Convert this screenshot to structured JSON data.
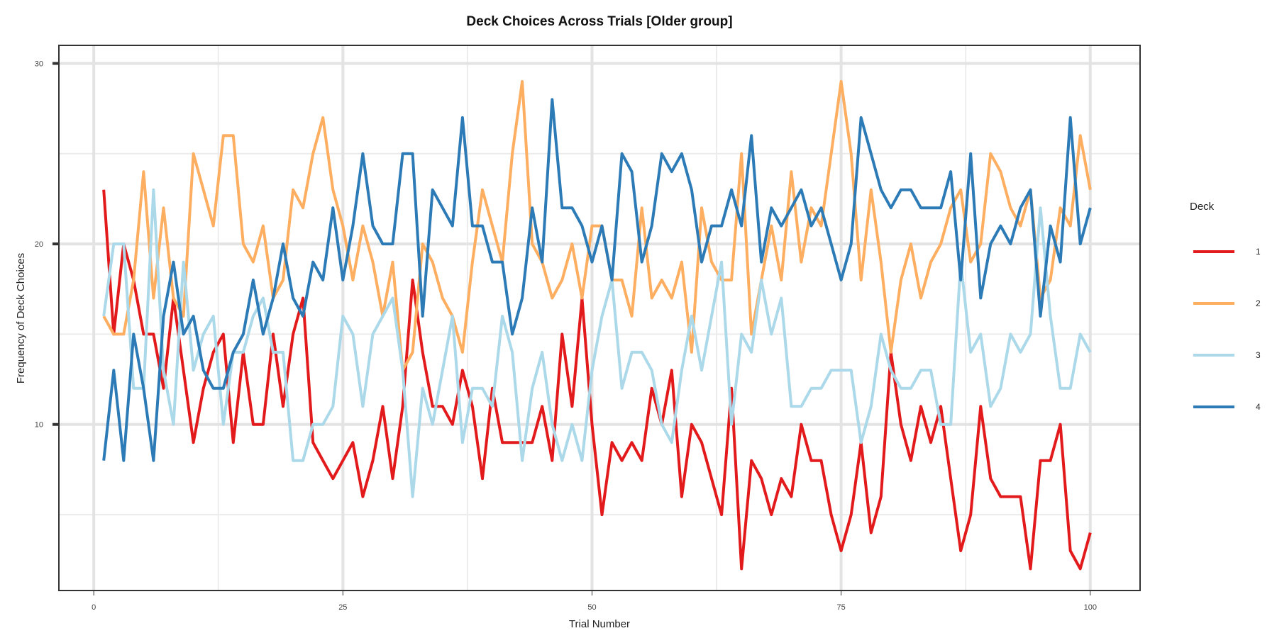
{
  "chart_data": {
    "type": "line",
    "title": "Deck Choices Across Trials [Older group]",
    "xlabel": "Trial Number",
    "ylabel": "Frequency of Deck Choices",
    "xlim": [
      -3.5,
      105
    ],
    "ylim": [
      0.8,
      31
    ],
    "x_ticks": [
      0,
      25,
      50,
      75,
      100
    ],
    "y_ticks": [
      10,
      20,
      30
    ],
    "grid": true,
    "legend": {
      "title": "Deck",
      "position": "right"
    },
    "x": [
      1,
      2,
      3,
      4,
      5,
      6,
      7,
      8,
      9,
      10,
      11,
      12,
      13,
      14,
      15,
      16,
      17,
      18,
      19,
      20,
      21,
      22,
      23,
      24,
      25,
      26,
      27,
      28,
      29,
      30,
      31,
      32,
      33,
      34,
      35,
      36,
      37,
      38,
      39,
      40,
      41,
      42,
      43,
      44,
      45,
      46,
      47,
      48,
      49,
      50,
      51,
      52,
      53,
      54,
      55,
      56,
      57,
      58,
      59,
      60,
      61,
      62,
      63,
      64,
      65,
      66,
      67,
      68,
      69,
      70,
      71,
      72,
      73,
      74,
      75,
      76,
      77,
      78,
      79,
      80,
      81,
      82,
      83,
      84,
      85,
      86,
      87,
      88,
      89,
      90,
      91,
      92,
      93,
      94,
      95,
      96,
      97,
      98,
      99,
      100
    ],
    "series": [
      {
        "name": "1",
        "color": "#E31A1C",
        "values": [
          23,
          15,
          20,
          18,
          15,
          15,
          12,
          17,
          13,
          9,
          12,
          14,
          15,
          9,
          14,
          10,
          10,
          15,
          11,
          15,
          17,
          9,
          8,
          7,
          8,
          9,
          6,
          8,
          11,
          7,
          11,
          18,
          14,
          11,
          11,
          10,
          13,
          11,
          7,
          12,
          9,
          9,
          9,
          9,
          11,
          8,
          15,
          11,
          17,
          10,
          5,
          9,
          8,
          9,
          8,
          12,
          10,
          13,
          6,
          10,
          9,
          7,
          5,
          12,
          2,
          8,
          7,
          5,
          7,
          6,
          10,
          8,
          8,
          5,
          3,
          5,
          9,
          4,
          6,
          14,
          10,
          8,
          11,
          9,
          11,
          7,
          3,
          5,
          11,
          7,
          6,
          6,
          6,
          2,
          8,
          8,
          10,
          3,
          2,
          4
        ]
      },
      {
        "name": "2",
        "color": "#FDAE61",
        "values": [
          16,
          15,
          15,
          18,
          24,
          17,
          22,
          17,
          16,
          25,
          23,
          21,
          26,
          26,
          20,
          19,
          21,
          17,
          18,
          23,
          22,
          25,
          27,
          23,
          21,
          18,
          21,
          19,
          16,
          19,
          13,
          14,
          20,
          19,
          17,
          16,
          14,
          19,
          23,
          21,
          19,
          25,
          29,
          20,
          19,
          17,
          18,
          20,
          17,
          21,
          21,
          18,
          18,
          16,
          22,
          17,
          18,
          17,
          19,
          14,
          22,
          19,
          18,
          18,
          25,
          15,
          18,
          21,
          18,
          24,
          19,
          22,
          21,
          25,
          29,
          25,
          18,
          23,
          19,
          14,
          18,
          20,
          17,
          19,
          20,
          22,
          23,
          19,
          20,
          25,
          24,
          22,
          21,
          23,
          17,
          18,
          22,
          21,
          26,
          23
        ]
      },
      {
        "name": "3",
        "color": "#ABD9E9",
        "values": [
          16,
          20,
          20,
          12,
          12,
          23,
          13,
          10,
          19,
          13,
          15,
          16,
          10,
          14,
          14,
          16,
          17,
          14,
          14,
          8,
          8,
          10,
          10,
          11,
          16,
          15,
          11,
          15,
          16,
          17,
          13,
          6,
          12,
          10,
          13,
          16,
          9,
          12,
          12,
          11,
          16,
          14,
          8,
          12,
          14,
          10,
          8,
          10,
          8,
          13,
          16,
          18,
          12,
          14,
          14,
          13,
          10,
          9,
          13,
          16,
          13,
          16,
          19,
          10,
          15,
          14,
          18,
          15,
          17,
          11,
          11,
          12,
          12,
          13,
          13,
          13,
          9,
          11,
          15,
          13,
          12,
          12,
          13,
          13,
          10,
          10,
          19,
          14,
          15,
          11,
          12,
          15,
          14,
          15,
          22,
          16,
          12,
          12,
          15,
          14
        ]
      },
      {
        "name": "4",
        "color": "#2C7BB6",
        "values": [
          8,
          13,
          8,
          15,
          12,
          8,
          16,
          19,
          15,
          16,
          13,
          12,
          12,
          14,
          15,
          18,
          15,
          17,
          20,
          17,
          16,
          19,
          18,
          22,
          18,
          21,
          25,
          21,
          20,
          20,
          25,
          25,
          16,
          23,
          22,
          21,
          27,
          21,
          21,
          19,
          19,
          15,
          17,
          22,
          19,
          28,
          22,
          22,
          21,
          19,
          21,
          18,
          25,
          24,
          19,
          21,
          25,
          24,
          25,
          23,
          19,
          21,
          21,
          23,
          21,
          26,
          19,
          22,
          21,
          22,
          23,
          21,
          22,
          20,
          18,
          20,
          27,
          25,
          23,
          22,
          23,
          23,
          22,
          22,
          22,
          24,
          18,
          25,
          17,
          20,
          21,
          20,
          22,
          23,
          16,
          21,
          19,
          27,
          20,
          22
        ]
      }
    ]
  }
}
